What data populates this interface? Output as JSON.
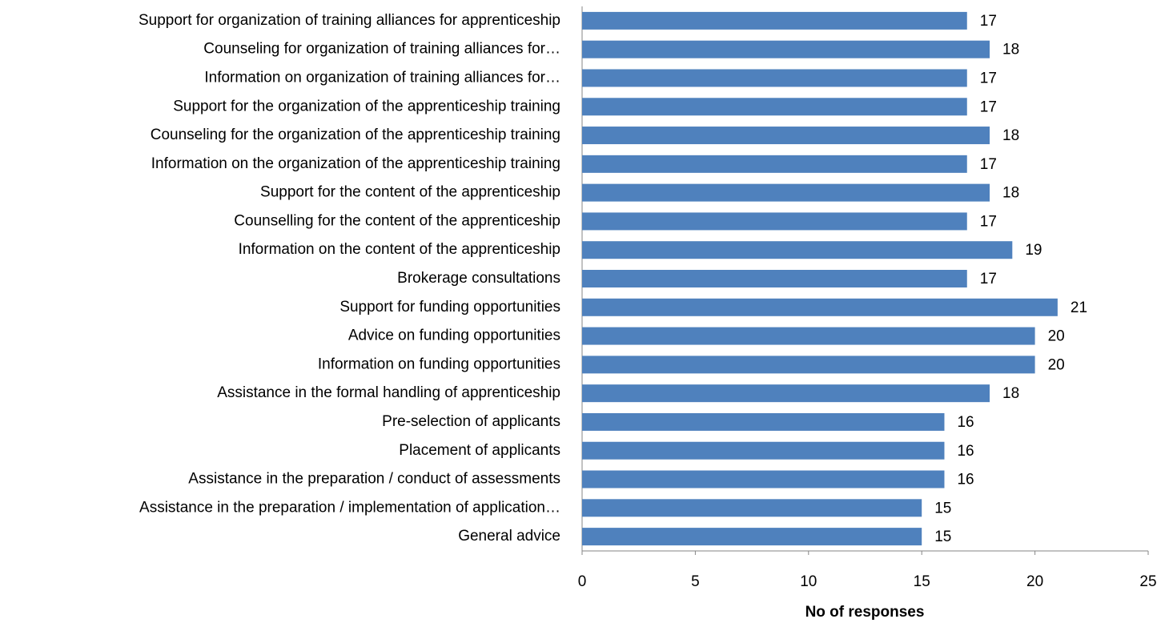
{
  "chart_data": {
    "type": "bar",
    "orientation": "horizontal",
    "categories": [
      "Support for organization of training alliances for  apprenticeship",
      "Counseling for organization of training alliances for…",
      "Information on organization of training alliances for…",
      "Support for the organization of the apprenticeship training",
      "Counseling for the organization of the apprenticeship training",
      "Information on the organization of the apprenticeship training",
      "Support for the content of the apprenticeship",
      "Counselling for the content of the apprenticeship",
      "Information on the content of the apprenticeship",
      "Brokerage consultations",
      "Support for funding opportunities",
      "Advice on funding opportunities",
      "Information on funding opportunities",
      "Assistance in the formal handling of apprenticeship",
      "Pre-selection of applicants",
      "Placement of applicants",
      "Assistance in the preparation / conduct of assessments",
      "Assistance in the preparation / implementation of application…",
      "General advice"
    ],
    "values": [
      17,
      18,
      17,
      17,
      18,
      17,
      18,
      17,
      19,
      17,
      21,
      20,
      20,
      18,
      16,
      16,
      16,
      15,
      15
    ],
    "color": "#4f81bd",
    "xlabel": "No of responses",
    "xlim": [
      0,
      25
    ],
    "xticks": [
      0,
      5,
      10,
      15,
      20,
      25
    ],
    "grid": false
  }
}
